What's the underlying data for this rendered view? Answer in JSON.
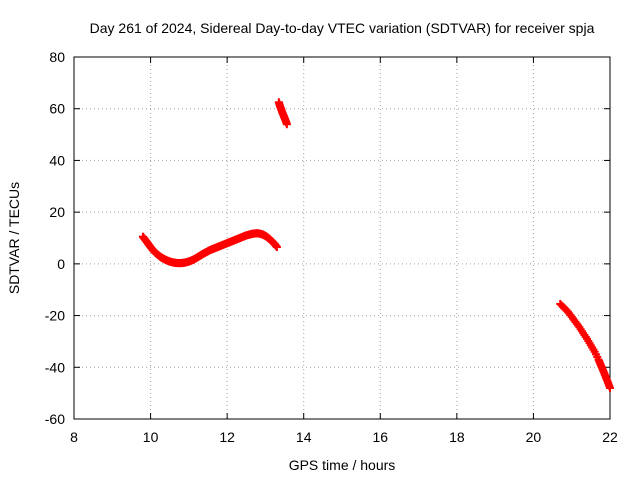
{
  "chart_data": {
    "type": "scatter",
    "title": "Day 261 of 2024, Sidereal Day-to-day VTEC variation (SDTVAR) for receiver spja",
    "xlabel": "GPS time / hours",
    "ylabel": "SDTVAR / TECUs",
    "xlim": [
      8,
      22
    ],
    "ylim": [
      -60,
      80
    ],
    "xticks": [
      8,
      10,
      12,
      14,
      16,
      18,
      20,
      22
    ],
    "yticks": [
      -60,
      -40,
      -20,
      0,
      20,
      40,
      60,
      80
    ],
    "xtick_labels": [
      "8",
      "10",
      "12",
      "14",
      "16",
      "18",
      "20",
      "22"
    ],
    "ytick_labels": [
      "-60",
      "-40",
      "-20",
      "0",
      "20",
      "40",
      "60",
      "80"
    ],
    "grid": true,
    "marker": "plus",
    "series": [
      {
        "color": "#ff0000",
        "segments": [
          {
            "x": [
              9.8,
              9.85,
              9.9,
              9.95,
              10.0,
              10.05,
              10.1,
              10.15,
              10.2,
              10.25,
              10.3,
              10.35,
              10.4,
              10.45,
              10.5,
              10.55,
              10.6,
              10.65,
              10.7,
              10.75,
              10.8,
              10.85,
              10.9,
              10.95,
              11.0,
              11.05,
              11.1,
              11.15,
              11.2,
              11.25,
              11.3,
              11.35,
              11.4,
              11.45,
              11.5,
              11.55,
              11.6,
              11.65,
              11.7,
              11.75,
              11.8,
              11.85,
              11.9,
              11.95,
              12.0,
              12.05,
              12.1,
              12.15,
              12.2,
              12.25,
              12.3,
              12.35,
              12.4,
              12.45,
              12.5,
              12.55,
              12.6,
              12.65,
              12.7,
              12.75,
              12.8,
              12.85,
              12.9,
              12.95,
              13.0,
              13.05,
              13.1,
              13.15,
              13.2,
              13.25,
              13.3
            ],
            "y": [
              10.5,
              9.5,
              8.5,
              7.5,
              6.5,
              5.5,
              4.7,
              4.0,
              3.4,
              2.8,
              2.3,
              1.9,
              1.5,
              1.2,
              0.9,
              0.7,
              0.5,
              0.4,
              0.3,
              0.3,
              0.3,
              0.4,
              0.5,
              0.7,
              0.9,
              1.2,
              1.5,
              1.9,
              2.3,
              2.8,
              3.2,
              3.7,
              4.1,
              4.5,
              4.9,
              5.3,
              5.6,
              5.9,
              6.2,
              6.5,
              6.8,
              7.1,
              7.4,
              7.7,
              8.0,
              8.3,
              8.6,
              8.9,
              9.2,
              9.5,
              9.8,
              10.1,
              10.4,
              10.7,
              11.0,
              11.2,
              11.4,
              11.6,
              11.7,
              11.8,
              11.8,
              11.7,
              11.5,
              11.2,
              10.8,
              10.3,
              9.7,
              9.0,
              8.3,
              7.5,
              6.5
            ]
          },
          {
            "x": [
              13.35,
              13.38,
              13.41,
              13.44,
              13.47,
              13.5,
              13.53,
              13.56
            ],
            "y": [
              62.5,
              61.0,
              59.8,
              58.6,
              57.5,
              56.4,
              55.3,
              54.0
            ]
          },
          {
            "x": [
              20.7,
              20.8,
              20.9,
              21.0,
              21.1,
              21.2,
              21.3,
              21.4,
              21.5,
              21.6,
              21.7,
              21.75,
              21.8,
              21.85,
              21.9,
              21.95,
              22.0
            ],
            "y": [
              -15.5,
              -17.0,
              -18.5,
              -20.5,
              -22.5,
              -24.5,
              -26.8,
              -29.0,
              -31.5,
              -34.0,
              -37.0,
              -38.8,
              -40.5,
              -42.3,
              -44.2,
              -46.0,
              -48.0
            ]
          }
        ]
      }
    ]
  }
}
